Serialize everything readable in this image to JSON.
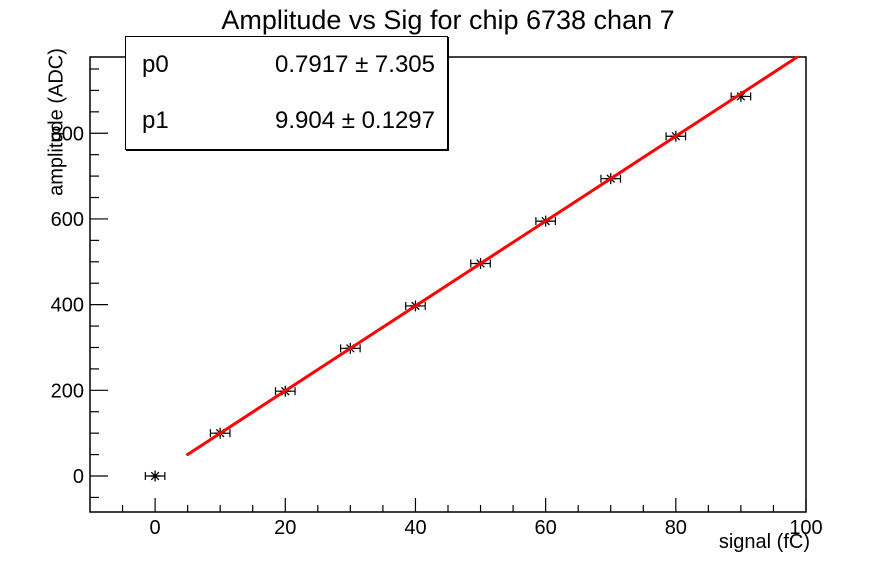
{
  "title": "Amplitude vs Sig for chip 6738 chan 7",
  "stats_box": {
    "rows": [
      {
        "name": "p0",
        "value": "0.7917 ± 7.305"
      },
      {
        "name": "p1",
        "value": "9.904 ± 0.1297"
      }
    ]
  },
  "chart_data": {
    "type": "scatter",
    "title": "Amplitude vs Sig for chip 6738 chan 7",
    "xlabel": "signal (fC)",
    "ylabel": "amplitude (ADC)",
    "xlim": [
      -10,
      100
    ],
    "ylim": [
      -84,
      978
    ],
    "grid": false,
    "x_major_ticks": [
      0,
      20,
      40,
      60,
      80,
      100
    ],
    "x_minor_step": 5,
    "y_major_ticks": [
      0,
      200,
      400,
      600,
      800
    ],
    "y_minor_step": 50,
    "points": {
      "x": [
        0,
        10,
        20,
        30,
        40,
        50,
        60,
        70,
        80,
        90
      ],
      "y": [
        0,
        100,
        198,
        298,
        397,
        496,
        595,
        694,
        793,
        886
      ],
      "xerr": 1.5,
      "marker": "asterisk-with-error-bars"
    },
    "fit": {
      "model": "p0 + p1*x",
      "p0": 0.7917,
      "p0_err": 7.305,
      "p1": 9.904,
      "p1_err": 0.1297,
      "x_start": 5,
      "x_end": 98.6
    },
    "colors": {
      "fit_line": "#ff0000",
      "marker": "#000000",
      "frame": "#000000",
      "background": "#ffffff"
    }
  }
}
